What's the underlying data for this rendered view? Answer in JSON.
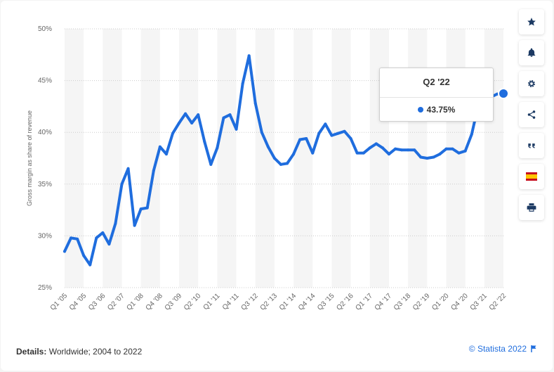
{
  "colors": {
    "series": "#1f6dde",
    "band": "#f5f5f5",
    "grid": "#cccccc"
  },
  "tooltip": {
    "title": "Q2 '22",
    "value": "43.75%"
  },
  "details": {
    "label": "Details:",
    "text": "Worldwide; 2004 to 2022"
  },
  "copyright": "© Statista 2022",
  "toolbar": [
    "star-icon",
    "bell-icon",
    "gear-icon",
    "share-icon",
    "quote-icon",
    "spain-flag-icon",
    "print-icon"
  ],
  "chart_data": {
    "type": "line",
    "title": "",
    "xlabel": "",
    "ylabel": "Gross margin as share of revenue",
    "ylim": [
      25,
      50
    ],
    "ytick_values": [
      25,
      30,
      35,
      40,
      45,
      50
    ],
    "ytick_labels": [
      "25%",
      "30%",
      "35%",
      "40%",
      "45%",
      "50%"
    ],
    "grid": true,
    "legend": "none",
    "xtick_labels": [
      "Q1 '05",
      "Q4 '05",
      "Q3 '06",
      "Q2 '07",
      "Q1 '08",
      "Q4 '08",
      "Q3 '09",
      "Q2 '10",
      "Q1 '11",
      "Q4 '11",
      "Q3 '12",
      "Q2 '13",
      "Q1 '14",
      "Q4 '14",
      "Q3 '15",
      "Q2 '16",
      "Q1 '17",
      "Q4 '17",
      "Q3 '18",
      "Q2 '19",
      "Q1 '20",
      "Q4 '20",
      "Q3 '21",
      "Q2 '22"
    ],
    "xtick_index": [
      0,
      3,
      6,
      9,
      12,
      15,
      18,
      21,
      24,
      27,
      30,
      33,
      36,
      39,
      42,
      45,
      48,
      51,
      54,
      57,
      60,
      63,
      66,
      69
    ],
    "highlight_index": 69,
    "x": [
      "Q1 '05",
      "Q2 '05",
      "Q3 '05",
      "Q4 '05",
      "Q1 '06",
      "Q2 '06",
      "Q3 '06",
      "Q4 '06",
      "Q1 '07",
      "Q2 '07",
      "Q3 '07",
      "Q4 '07",
      "Q1 '08",
      "Q2 '08",
      "Q3 '08",
      "Q4 '08",
      "Q1 '09",
      "Q2 '09",
      "Q3 '09",
      "Q4 '09",
      "Q1 '10",
      "Q2 '10",
      "Q3 '10",
      "Q4 '10",
      "Q1 '11",
      "Q2 '11",
      "Q3 '11",
      "Q4 '11",
      "Q1 '12",
      "Q2 '12",
      "Q3 '12",
      "Q4 '12",
      "Q1 '13",
      "Q2 '13",
      "Q3 '13",
      "Q4 '13",
      "Q1 '14",
      "Q2 '14",
      "Q3 '14",
      "Q4 '14",
      "Q1 '15",
      "Q2 '15",
      "Q3 '15",
      "Q4 '15",
      "Q1 '16",
      "Q2 '16",
      "Q3 '16",
      "Q4 '16",
      "Q1 '17",
      "Q2 '17",
      "Q3 '17",
      "Q4 '17",
      "Q1 '18",
      "Q2 '18",
      "Q3 '18",
      "Q4 '18",
      "Q1 '19",
      "Q2 '19",
      "Q3 '19",
      "Q4 '19",
      "Q1 '20",
      "Q2 '20",
      "Q3 '20",
      "Q4 '20",
      "Q1 '21",
      "Q2 '21",
      "Q3 '21",
      "Q4 '21",
      "Q1 '22",
      "Q2 '22"
    ],
    "series": [
      {
        "values": [
          28.5,
          29.8,
          29.7,
          28.1,
          27.2,
          29.8,
          30.3,
          29.2,
          31.2,
          35.0,
          36.5,
          31.0,
          32.6,
          32.7,
          36.3,
          38.6,
          37.9,
          39.9,
          40.9,
          41.8,
          40.9,
          41.7,
          39.1,
          36.9,
          38.5,
          41.4,
          41.7,
          40.3,
          44.7,
          47.4,
          42.8,
          40.0,
          38.6,
          37.5,
          36.9,
          37.0,
          37.9,
          39.3,
          39.4,
          38.0,
          39.9,
          40.8,
          39.7,
          39.9,
          40.1,
          39.4,
          38.0,
          38.0,
          38.5,
          38.9,
          38.5,
          37.9,
          38.4,
          38.3,
          38.3,
          38.3,
          37.6,
          37.5,
          37.6,
          37.9,
          38.4,
          38.4,
          38.0,
          38.2,
          39.8,
          42.5,
          43.4,
          43.4,
          43.7,
          43.75
        ]
      }
    ]
  }
}
